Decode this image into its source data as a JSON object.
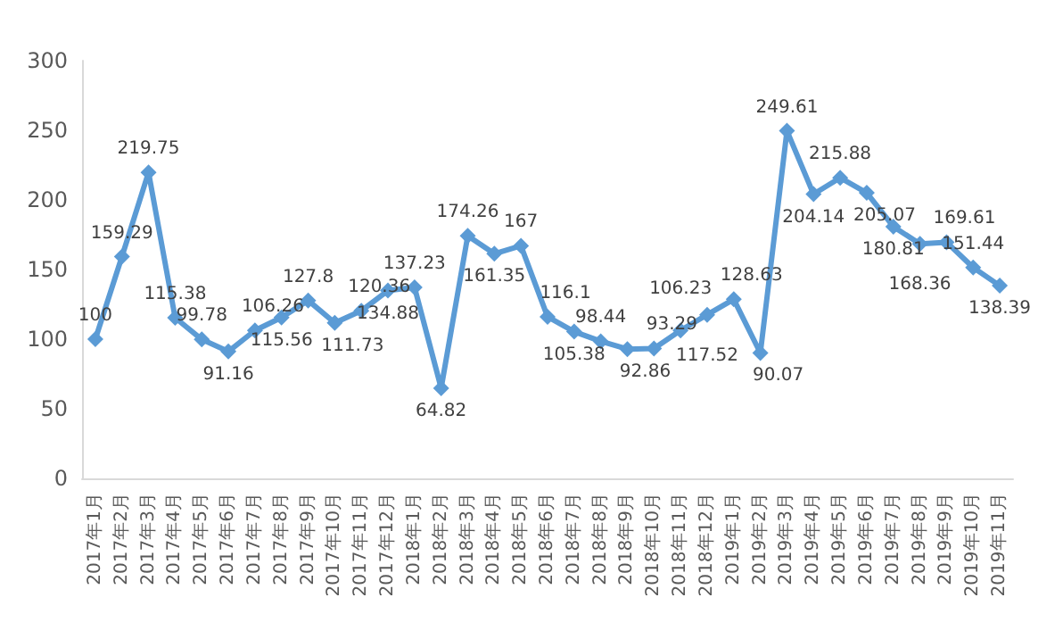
{
  "chart_data": {
    "type": "line",
    "categories": [
      "2017年1月",
      "2017年2月",
      "2017年3月",
      "2017年4月",
      "2017年5月",
      "2017年6月",
      "2017年7月",
      "2017年8月",
      "2017年9月",
      "2017年10月",
      "2017年11月",
      "2017年12月",
      "2018年1月",
      "2018年2月",
      "2018年3月",
      "2018年4月",
      "2018年5月",
      "2018年6月",
      "2018年7月",
      "2018年8月",
      "2018年9月",
      "2018年10月",
      "2018年11月",
      "2018年12月",
      "2019年1月",
      "2019年2月",
      "2019年3月",
      "2019年4月",
      "2019年5月",
      "2019年6月",
      "2019年7月",
      "2019年8月",
      "2019年9月",
      "2019年10月",
      "2019年11月"
    ],
    "series": [
      {
        "color": "#5b9bd5",
        "values": [
          100,
          159.29,
          219.75,
          115.38,
          99.78,
          91.16,
          106.26,
          115.56,
          127.8,
          111.73,
          120.36,
          134.88,
          137.23,
          64.82,
          174.26,
          161.35,
          167,
          116.1,
          105.38,
          98.44,
          92.86,
          93.29,
          106.23,
          117.52,
          128.63,
          90.07,
          249.61,
          204.14,
          215.88,
          205.07,
          180.81,
          168.36,
          169.61,
          151.44,
          138.39
        ]
      }
    ],
    "ylim": [
      0,
      300
    ],
    "yticks": [
      0,
      50,
      100,
      150,
      200,
      250,
      300
    ],
    "grid": false,
    "marker": "diamond",
    "line_style": "solid",
    "data_labels": true
  }
}
